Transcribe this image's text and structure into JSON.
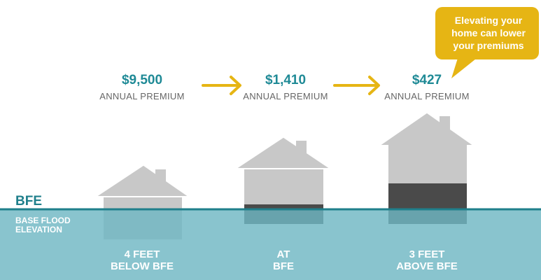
{
  "colors": {
    "water": "#6fb7c3",
    "water_line": "#1f7f8b",
    "house": "#c8c8c8",
    "house_dark": "#4a4a4a",
    "accent": "#e6b514",
    "price": "#1f8a96"
  },
  "callout": {
    "line1": "Elevating your",
    "line2": "home can lower",
    "line3": "your premiums"
  },
  "bfe": {
    "label": "BFE",
    "sub_line1": "BASE FLOOD",
    "sub_line2": "ELEVATION"
  },
  "scenarios": [
    {
      "price": "$9,500",
      "label": "ANNUAL PREMIUM",
      "caption_line1": "4 FEET",
      "caption_line2": "BELOW BFE"
    },
    {
      "price": "$1,410",
      "label": "ANNUAL PREMIUM",
      "caption_line1": "AT",
      "caption_line2": "BFE"
    },
    {
      "price": "$427",
      "label": "ANNUAL PREMIUM",
      "caption_line1": "3 FEET",
      "caption_line2": "ABOVE BFE"
    }
  ]
}
